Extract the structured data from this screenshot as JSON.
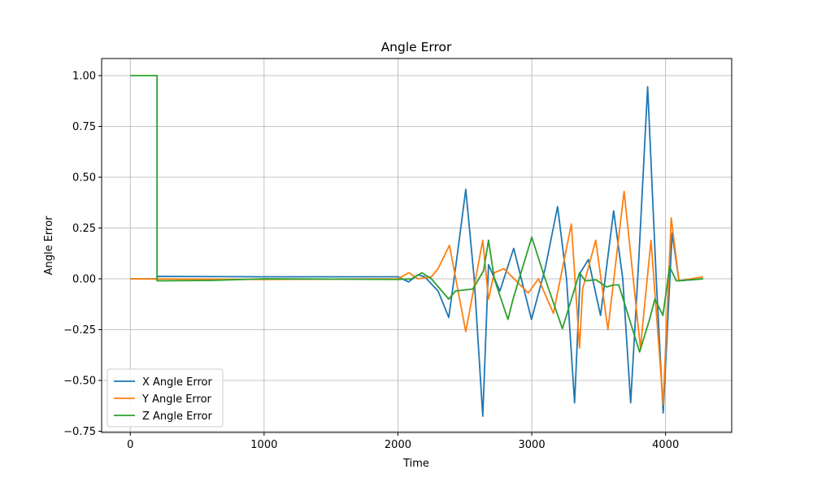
{
  "chart_data": {
    "type": "line",
    "title": "Angle Error",
    "x_label": "Time",
    "y_label": "Angle Error",
    "xlim": [
      -214,
      4494
    ],
    "ylim": [
      -0.756,
      1.084
    ],
    "xticks": [
      0,
      1000,
      2000,
      3000,
      4000
    ],
    "yticks": [
      {
        "value": -0.75,
        "label": "−0.75"
      },
      {
        "value": -0.5,
        "label": "−0.50"
      },
      {
        "value": -0.25,
        "label": "−0.25"
      },
      {
        "value": 0,
        "label": "0.00"
      },
      {
        "value": 0.25,
        "label": "0.25"
      },
      {
        "value": 0.5,
        "label": "0.50"
      },
      {
        "value": 0.75,
        "label": "0.75"
      },
      {
        "value": 1,
        "label": "1.00"
      }
    ],
    "grid": true,
    "legend": "lower left",
    "series": [
      {
        "name": "X Angle Error",
        "color": "#1f77b4",
        "x": [
          0,
          200,
          200,
          1000,
          2000,
          2080,
          2150,
          2200,
          2300,
          2380,
          2440,
          2507,
          2570,
          2634,
          2677,
          2762,
          2865,
          2998,
          3100,
          3193,
          3260,
          3320,
          3363,
          3423,
          3514,
          3612,
          3680,
          3739,
          3800,
          3866,
          3930,
          3982,
          4049,
          4100,
          4280
        ],
        "values": [
          0,
          0,
          0.012,
          0.01,
          0.01,
          -0.015,
          0.02,
          0.01,
          -0.06,
          -0.19,
          0.1,
          0.44,
          0.0,
          -0.676,
          0.07,
          -0.06,
          0.15,
          -0.2,
          0.05,
          0.355,
          0.0,
          -0.61,
          0.03,
          0.095,
          -0.18,
          0.335,
          0.0,
          -0.61,
          0.1,
          0.945,
          0.0,
          -0.66,
          0.225,
          -0.01,
          0.0
        ]
      },
      {
        "name": "Y Angle Error",
        "color": "#ff7f0e",
        "x": [
          0,
          1000,
          2000,
          2082,
          2150,
          2250,
          2300,
          2385,
          2507,
          2634,
          2677,
          2720,
          2792,
          2974,
          3050,
          3162,
          3296,
          3357,
          3380,
          3478,
          3569,
          3690,
          3812,
          3891,
          3982,
          4042,
          4100,
          4280
        ],
        "values": [
          0,
          -0.003,
          0,
          0.03,
          0.0,
          0.01,
          0.05,
          0.165,
          -0.26,
          0.19,
          -0.1,
          0.03,
          0.05,
          -0.07,
          0.0,
          -0.17,
          0.27,
          -0.34,
          -0.05,
          0.19,
          -0.25,
          0.43,
          -0.34,
          0.19,
          -0.62,
          0.3,
          -0.01,
          0.01
        ]
      },
      {
        "name": "Z Angle Error",
        "color": "#2ca02c",
        "x": [
          0,
          200,
          200,
          600,
          1000,
          2000,
          2100,
          2180,
          2250,
          2380,
          2430,
          2560,
          2640,
          2677,
          2720,
          2822,
          2860,
          3000,
          3100,
          3229,
          3357,
          3400,
          3480,
          3560,
          3610,
          3650,
          3806,
          3880,
          3920,
          3980,
          4030,
          4080,
          4280
        ],
        "values": [
          1,
          1,
          -0.01,
          -0.008,
          0,
          -0.003,
          0.0,
          0.03,
          0.0,
          -0.1,
          -0.06,
          -0.05,
          0.04,
          0.19,
          0.0,
          -0.2,
          -0.1,
          0.205,
          0.0,
          -0.245,
          0.03,
          -0.01,
          -0.005,
          -0.04,
          -0.03,
          -0.03,
          -0.36,
          -0.2,
          -0.1,
          -0.18,
          0.06,
          -0.01,
          0.0
        ]
      }
    ]
  }
}
